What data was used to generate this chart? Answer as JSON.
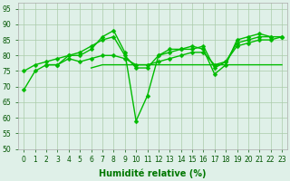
{
  "x": [
    0,
    1,
    2,
    3,
    4,
    5,
    6,
    7,
    8,
    9,
    10,
    11,
    12,
    13,
    14,
    15,
    16,
    17,
    18,
    19,
    20,
    21,
    22,
    23
  ],
  "line1": [
    69,
    75,
    77,
    77,
    80,
    80,
    82,
    86,
    88,
    81,
    59,
    67,
    80,
    82,
    82,
    83,
    82,
    74,
    77,
    85,
    86,
    87,
    86,
    null
  ],
  "line2": [
    75,
    77,
    78,
    79,
    80,
    81,
    83,
    85,
    86,
    80,
    76,
    76,
    80,
    81,
    82,
    82,
    83,
    76,
    78,
    84,
    85,
    86,
    86,
    86
  ],
  "line3": [
    null,
    null,
    77,
    77,
    79,
    78,
    79,
    80,
    80,
    79,
    77,
    77,
    78,
    79,
    80,
    81,
    81,
    77,
    78,
    83,
    84,
    85,
    85,
    86
  ],
  "line4": [
    null,
    null,
    null,
    null,
    null,
    null,
    76,
    77,
    77,
    77,
    77,
    77,
    77,
    77,
    77,
    77,
    77,
    77,
    77,
    77,
    77,
    77,
    77,
    77
  ],
  "bg_color": "#dff0e8",
  "grid_color": "#aaccaa",
  "line_color": "#00bb00",
  "marker": "D",
  "markersize": 2.5,
  "linewidth": 1.0,
  "ylim": [
    50,
    97
  ],
  "yticks": [
    50,
    55,
    60,
    65,
    70,
    75,
    80,
    85,
    90,
    95
  ],
  "xlim": [
    -0.5,
    23.5
  ],
  "xlabel": "Humidité relative (%)",
  "xlabel_color": "#007700",
  "tick_fontsize": 5.5,
  "xlabel_fontsize": 7
}
